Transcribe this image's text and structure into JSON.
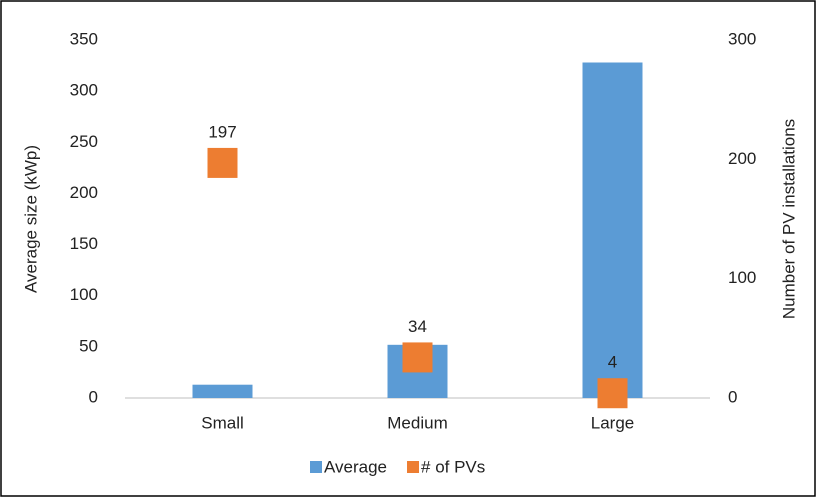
{
  "chart_data": {
    "type": "bar",
    "categories": [
      "Small",
      "Medium",
      "Large"
    ],
    "series": [
      {
        "name": "Average",
        "color": "#5b9bd5",
        "type": "bar",
        "values": [
          13,
          52,
          328
        ]
      },
      {
        "name": "# of PVs",
        "color": "#ed7d31",
        "type": "scatter",
        "axis": "y2",
        "values": [
          197,
          34,
          4
        ]
      }
    ],
    "ylabel": "Average size (kWp)",
    "y2label": "Number  of PV installations",
    "ylim": [
      0,
      350
    ],
    "yticks": [
      0,
      50,
      100,
      150,
      200,
      250,
      300,
      350
    ],
    "y2lim": [
      0,
      300
    ],
    "y2ticks": [
      0,
      100,
      200,
      300
    ],
    "legend": "bottom",
    "grid": false
  }
}
